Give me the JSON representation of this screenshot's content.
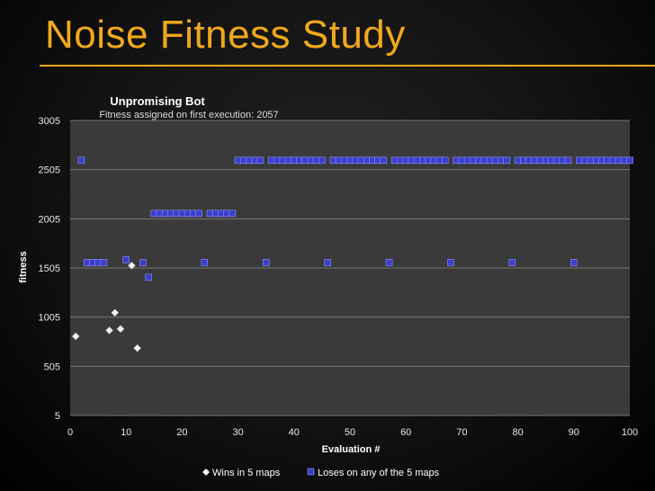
{
  "slide": {
    "title": "Noise Fitness Study"
  },
  "colors": {
    "accent": "#f0a81c",
    "wins": "#f2f2f2",
    "loses": "#3b3fc9",
    "plot_bg": "#3a3a3a",
    "grid": "#777777"
  },
  "chart_data": {
    "type": "scatter",
    "title": "Unpromising Bot",
    "subtitle": "Fitness assigned on first execution: 2057",
    "xlabel": "Evaluation #",
    "ylabel": "fitness",
    "xlim": [
      0,
      100
    ],
    "ylim": [
      5,
      3005
    ],
    "x_ticks": [
      "0",
      "10",
      "20",
      "30",
      "40",
      "50",
      "60",
      "70",
      "80",
      "90",
      "100"
    ],
    "y_ticks": [
      "3005",
      "2505",
      "2005",
      "1505",
      "1005",
      "505",
      "5"
    ],
    "grid": true,
    "legend_position": "bottom",
    "series": [
      {
        "name": "Wins in 5 maps",
        "marker": "diamond",
        "points": [
          [
            1,
            810
          ],
          [
            7,
            870
          ],
          [
            8,
            1050
          ],
          [
            9,
            885
          ],
          [
            11,
            1530
          ],
          [
            12,
            690
          ]
        ]
      },
      {
        "name": "Loses on any of the 5 maps",
        "marker": "square",
        "points": [
          [
            2,
            2600
          ],
          [
            3,
            1560
          ],
          [
            4,
            1560
          ],
          [
            5,
            1560
          ],
          [
            6,
            1560
          ],
          [
            10,
            1590
          ],
          [
            13,
            1560
          ],
          [
            14,
            1410
          ],
          [
            15,
            2060
          ],
          [
            16,
            2060
          ],
          [
            17,
            2060
          ],
          [
            18,
            2060
          ],
          [
            19,
            2060
          ],
          [
            20,
            2060
          ],
          [
            21,
            2060
          ],
          [
            22,
            2060
          ],
          [
            23,
            2060
          ],
          [
            24,
            1560
          ],
          [
            25,
            2060
          ],
          [
            26,
            2060
          ],
          [
            27,
            2060
          ],
          [
            28,
            2060
          ],
          [
            29,
            2060
          ],
          [
            30,
            2600
          ],
          [
            31,
            2600
          ],
          [
            32,
            2600
          ],
          [
            33,
            2600
          ],
          [
            34,
            2600
          ],
          [
            35,
            1560
          ],
          [
            36,
            2600
          ],
          [
            37,
            2600
          ],
          [
            38,
            2600
          ],
          [
            39,
            2600
          ],
          [
            40,
            2600
          ],
          [
            41,
            2600
          ],
          [
            42,
            2600
          ],
          [
            43,
            2600
          ],
          [
            44,
            2600
          ],
          [
            45,
            2600
          ],
          [
            46,
            1560
          ],
          [
            47,
            2600
          ],
          [
            48,
            2600
          ],
          [
            49,
            2600
          ],
          [
            50,
            2600
          ],
          [
            51,
            2600
          ],
          [
            52,
            2600
          ],
          [
            53,
            2600
          ],
          [
            54,
            2600
          ],
          [
            55,
            2600
          ],
          [
            56,
            2600
          ],
          [
            57,
            1560
          ],
          [
            58,
            2600
          ],
          [
            59,
            2600
          ],
          [
            60,
            2600
          ],
          [
            61,
            2600
          ],
          [
            62,
            2600
          ],
          [
            63,
            2600
          ],
          [
            64,
            2600
          ],
          [
            65,
            2600
          ],
          [
            66,
            2600
          ],
          [
            67,
            2600
          ],
          [
            68,
            1560
          ],
          [
            69,
            2600
          ],
          [
            70,
            2600
          ],
          [
            71,
            2600
          ],
          [
            72,
            2600
          ],
          [
            73,
            2600
          ],
          [
            74,
            2600
          ],
          [
            75,
            2600
          ],
          [
            76,
            2600
          ],
          [
            77,
            2600
          ],
          [
            78,
            2600
          ],
          [
            79,
            1560
          ],
          [
            80,
            2600
          ],
          [
            81,
            2600
          ],
          [
            82,
            2600
          ],
          [
            83,
            2600
          ],
          [
            84,
            2600
          ],
          [
            85,
            2600
          ],
          [
            86,
            2600
          ],
          [
            87,
            2600
          ],
          [
            88,
            2600
          ],
          [
            89,
            2600
          ],
          [
            90,
            1560
          ],
          [
            91,
            2600
          ],
          [
            92,
            2600
          ],
          [
            93,
            2600
          ],
          [
            94,
            2600
          ],
          [
            95,
            2600
          ],
          [
            96,
            2600
          ],
          [
            97,
            2600
          ],
          [
            98,
            2600
          ],
          [
            99,
            2600
          ],
          [
            100,
            2600
          ]
        ]
      }
    ]
  }
}
